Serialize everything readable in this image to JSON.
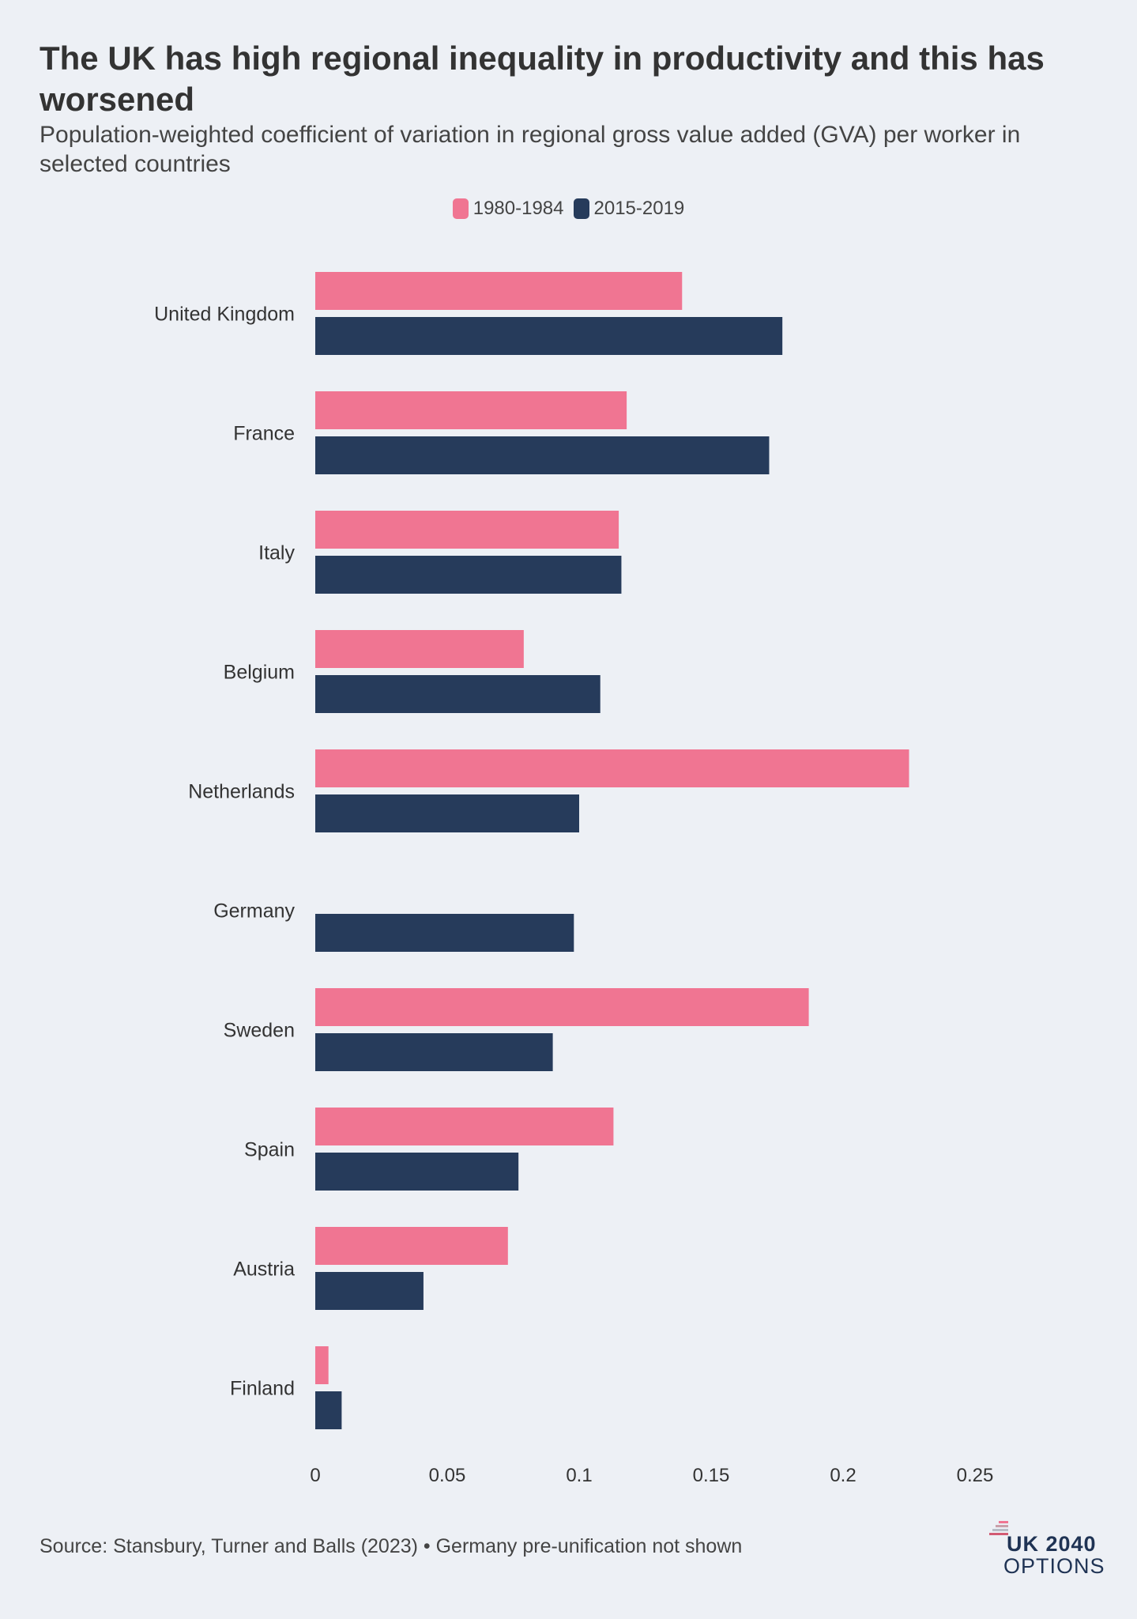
{
  "header": {
    "title": "The UK has high regional inequality in productivity and this has worsened",
    "subtitle": "Population-weighted coefficient of variation in regional gross value added (GVA) per worker in selected countries"
  },
  "legend": {
    "items": [
      {
        "label": "1980-1984",
        "color": "#f07592"
      },
      {
        "label": "2015-2019",
        "color": "#263b5b"
      }
    ]
  },
  "chart_data": {
    "type": "bar",
    "orientation": "horizontal",
    "categories": [
      "United Kingdom",
      "France",
      "Italy",
      "Belgium",
      "Netherlands",
      "Germany",
      "Sweden",
      "Spain",
      "Austria",
      "Finland"
    ],
    "series": [
      {
        "name": "1980-1984",
        "color": "#f07592",
        "values": [
          0.139,
          0.118,
          0.115,
          0.079,
          0.225,
          null,
          0.187,
          0.113,
          0.073,
          0.005
        ]
      },
      {
        "name": "2015-2019",
        "color": "#263b5b",
        "values": [
          0.177,
          0.172,
          0.116,
          0.108,
          0.1,
          0.098,
          0.09,
          0.077,
          0.041,
          0.01
        ]
      }
    ],
    "xlim": [
      0,
      0.25
    ],
    "xticks": [
      "0",
      "0.05",
      "0.1",
      "0.15",
      "0.2",
      "0.25"
    ],
    "xtick_values": [
      0,
      0.05,
      0.1,
      0.15,
      0.2,
      0.25
    ],
    "xlabel": "",
    "ylabel": "",
    "grid": false,
    "legend_position": "top-center"
  },
  "footer": {
    "source": "Source: Stansbury, Turner and Balls (2023) • Germany pre-unification not shown",
    "logo_line1": "UK 2040",
    "logo_line2": "OPTIONS"
  }
}
